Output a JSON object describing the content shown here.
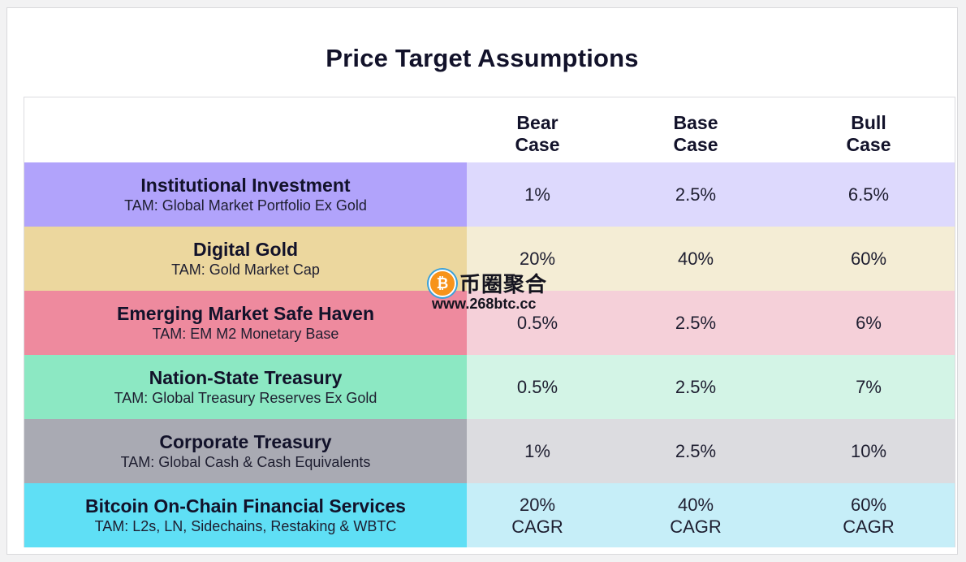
{
  "title": "Price Target Assumptions",
  "chart_data": {
    "type": "table",
    "title": "Price Target Assumptions",
    "columns": [
      "Bear Case",
      "Base Case",
      "Bull Case"
    ],
    "column_lines": [
      [
        "Bear",
        "Case"
      ],
      [
        "Base",
        "Case"
      ],
      [
        "Bull",
        "Case"
      ]
    ],
    "rows": [
      {
        "name": "Institutional Investment",
        "tam": "TAM: Global Market Portfolio Ex Gold",
        "color": "#b1a3fb",
        "tint": "#ddd9fd",
        "values": [
          "1%",
          "2.5%",
          "6.5%"
        ]
      },
      {
        "name": "Digital Gold",
        "tam": "TAM: Gold Market Cap",
        "color": "#ecd79e",
        "tint": "#f4edd5",
        "values": [
          "20%",
          "40%",
          "60%"
        ]
      },
      {
        "name": "Emerging Market Safe Haven",
        "tam": "TAM: EM M2 Monetary Base",
        "color": "#ee8a9e",
        "tint": "#f5d0d9",
        "values": [
          "0.5%",
          "2.5%",
          "6%"
        ]
      },
      {
        "name": "Nation-State Treasury",
        "tam": "TAM: Global Treasury Reserves Ex Gold",
        "color": "#8ce8c3",
        "tint": "#d3f4e6",
        "values": [
          "0.5%",
          "2.5%",
          "7%"
        ]
      },
      {
        "name": "Corporate Treasury",
        "tam": "TAM: Global Cash & Cash Equivalents",
        "color": "#a9aab3",
        "tint": "#dcdce0",
        "values": [
          "1%",
          "2.5%",
          "10%"
        ]
      },
      {
        "name": "Bitcoin On-Chain Financial Services",
        "tam": "TAM: L2s, LN, Sidechains, Restaking & WBTC",
        "color": "#5fdff5",
        "tint": "#c6eef8",
        "values": [
          "20%",
          "40%",
          "60%"
        ],
        "value_suffix": "CAGR"
      }
    ]
  },
  "watermark": {
    "text": "币圈聚合",
    "url": "www.268btc.cc",
    "coin_symbol": "₿"
  }
}
